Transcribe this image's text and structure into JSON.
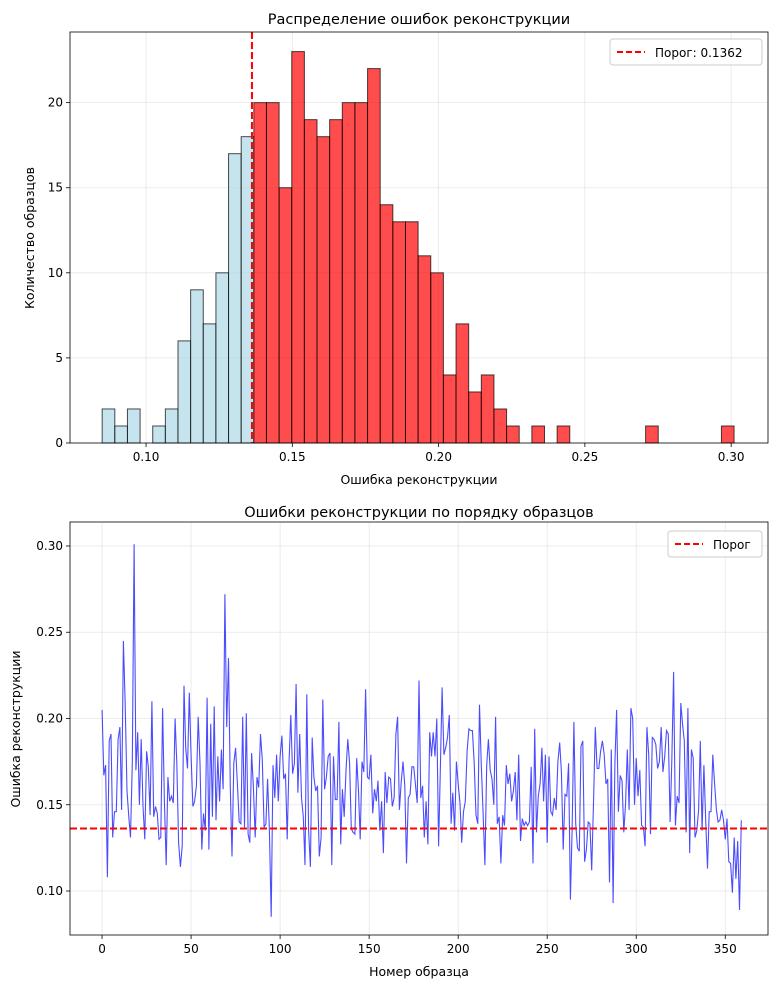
{
  "chart_data": [
    {
      "type": "bar",
      "title": "Распределение ошибок реконструкции",
      "xlabel": "Ошибка реконструкции",
      "ylabel": "Количество образцов",
      "bin_range": [
        0.085,
        0.301
      ],
      "counts": [
        2,
        1,
        2,
        0,
        1,
        2,
        6,
        9,
        7,
        10,
        17,
        18,
        20,
        20,
        15,
        23,
        19,
        18,
        19,
        20,
        20,
        22,
        14,
        13,
        13,
        11,
        10,
        4,
        7,
        3,
        4,
        2,
        1,
        0,
        1,
        0,
        1,
        0,
        0,
        0,
        0,
        0,
        0,
        1,
        0,
        0,
        0,
        0,
        0,
        1
      ],
      "xlim": [
        0.074,
        0.3126
      ],
      "ylim": [
        0,
        24.15
      ],
      "xticks": [
        "0.10",
        "0.15",
        "0.20",
        "0.25",
        "0.30"
      ],
      "yticks": [
        "0",
        "5",
        "10",
        "15",
        "20"
      ],
      "threshold": 0.1362,
      "legend": {
        "label": "Порог: 0.1362",
        "placement": "top-right"
      },
      "colors": {
        "below": "#add8e6",
        "above": "#ff0000",
        "threshold": "#ff0000"
      },
      "grid": true
    },
    {
      "type": "line",
      "title": "Ошибки реконструкции по порядку образцов",
      "xlabel": "Номер образца",
      "ylabel": "Ошибка реконструкции",
      "xlim": [
        -18,
        374
      ],
      "ylim": [
        0.0745,
        0.3139
      ],
      "xticks": [
        "0",
        "50",
        "100",
        "150",
        "200",
        "250",
        "300",
        "350"
      ],
      "yticks": [
        "0.10",
        "0.15",
        "0.20",
        "0.25",
        "0.30"
      ],
      "threshold": 0.1362,
      "legend": {
        "label": "Порог",
        "placement": "top-right"
      },
      "colors": {
        "line": "#0000ff",
        "threshold": "#ff0000"
      },
      "grid": true,
      "values": [
        0.205,
        0.167,
        0.173,
        0.108,
        0.187,
        0.191,
        0.131,
        0.146,
        0.146,
        0.188,
        0.195,
        0.147,
        0.245,
        0.208,
        0.158,
        0.143,
        0.131,
        0.174,
        0.301,
        0.17,
        0.192,
        0.15,
        0.188,
        0.149,
        0.13,
        0.181,
        0.172,
        0.144,
        0.21,
        0.143,
        0.149,
        0.145,
        0.13,
        0.131,
        0.206,
        0.152,
        0.115,
        0.166,
        0.152,
        0.155,
        0.151,
        0.2,
        0.174,
        0.128,
        0.114,
        0.126,
        0.219,
        0.183,
        0.171,
        0.215,
        0.178,
        0.149,
        0.152,
        0.161,
        0.201,
        0.174,
        0.124,
        0.145,
        0.135,
        0.212,
        0.124,
        0.197,
        0.143,
        0.207,
        0.141,
        0.178,
        0.152,
        0.182,
        0.159,
        0.272,
        0.195,
        0.235,
        0.16,
        0.12,
        0.174,
        0.183,
        0.162,
        0.14,
        0.139,
        0.201,
        0.137,
        0.203,
        0.133,
        0.128,
        0.18,
        0.16,
        0.131,
        0.166,
        0.16,
        0.191,
        0.176,
        0.137,
        0.139,
        0.165,
        0.135,
        0.085,
        0.173,
        0.154,
        0.179,
        0.152,
        0.178,
        0.19,
        0.165,
        0.168,
        0.13,
        0.174,
        0.202,
        0.168,
        0.174,
        0.22,
        0.157,
        0.191,
        0.154,
        0.143,
        0.115,
        0.214,
        0.135,
        0.114,
        0.189,
        0.166,
        0.158,
        0.161,
        0.12,
        0.131,
        0.211,
        0.159,
        0.166,
        0.178,
        0.18,
        0.115,
        0.178,
        0.153,
        0.153,
        0.198,
        0.127,
        0.159,
        0.143,
        0.17,
        0.188,
        0.174,
        0.136,
        0.134,
        0.133,
        0.177,
        0.158,
        0.13,
        0.175,
        0.169,
        0.217,
        0.166,
        0.165,
        0.179,
        0.145,
        0.159,
        0.152,
        0.164,
        0.135,
        0.152,
        0.122,
        0.169,
        0.151,
        0.166,
        0.165,
        0.149,
        0.154,
        0.191,
        0.201,
        0.147,
        0.163,
        0.175,
        0.161,
        0.116,
        0.154,
        0.156,
        0.172,
        0.172,
        0.162,
        0.151,
        0.222,
        0.154,
        0.161,
        0.131,
        0.152,
        0.127,
        0.192,
        0.178,
        0.192,
        0.178,
        0.2,
        0.126,
        0.172,
        0.218,
        0.179,
        0.183,
        0.189,
        0.202,
        0.139,
        0.157,
        0.135,
        0.175,
        0.162,
        0.151,
        0.128,
        0.146,
        0.152,
        0.181,
        0.194,
        0.193,
        0.193,
        0.174,
        0.144,
        0.139,
        0.208,
        0.173,
        0.145,
        0.115,
        0.173,
        0.188,
        0.17,
        0.165,
        0.15,
        0.201,
        0.139,
        0.143,
        0.116,
        0.144,
        0.138,
        0.173,
        0.162,
        0.168,
        0.152,
        0.158,
        0.169,
        0.141,
        0.179,
        0.129,
        0.142,
        0.138,
        0.14,
        0.138,
        0.14,
        0.172,
        0.116,
        0.194,
        0.134,
        0.155,
        0.162,
        0.183,
        0.152,
        0.179,
        0.128,
        0.178,
        0.146,
        0.144,
        0.154,
        0.147,
        0.175,
        0.186,
        0.169,
        0.124,
        0.156,
        0.155,
        0.174,
        0.095,
        0.135,
        0.198,
        0.139,
        0.125,
        0.123,
        0.184,
        0.187,
        0.117,
        0.124,
        0.14,
        0.139,
        0.112,
        0.151,
        0.195,
        0.171,
        0.171,
        0.181,
        0.187,
        0.179,
        0.162,
        0.165,
        0.105,
        0.182,
        0.093,
        0.174,
        0.205,
        0.146,
        0.167,
        0.164,
        0.134,
        0.151,
        0.182,
        0.147,
        0.206,
        0.2,
        0.15,
        0.177,
        0.155,
        0.17,
        0.138,
        0.137,
        0.126,
        0.195,
        0.179,
        0.133,
        0.189,
        0.188,
        0.185,
        0.171,
        0.175,
        0.195,
        0.169,
        0.178,
        0.193,
        0.191,
        0.14,
        0.175,
        0.227,
        0.138,
        0.155,
        0.151,
        0.209,
        0.197,
        0.187,
        0.134,
        0.206,
        0.122,
        0.182,
        0.177,
        0.131,
        0.135,
        0.147,
        0.187,
        0.135,
        0.173,
        0.141,
        0.113,
        0.146,
        0.146,
        0.179,
        0.162,
        0.147,
        0.14,
        0.141,
        0.147,
        0.141,
        0.13,
        0.142,
        0.117,
        0.116,
        0.099,
        0.131,
        0.107,
        0.129,
        0.089,
        0.141
      ]
    }
  ]
}
